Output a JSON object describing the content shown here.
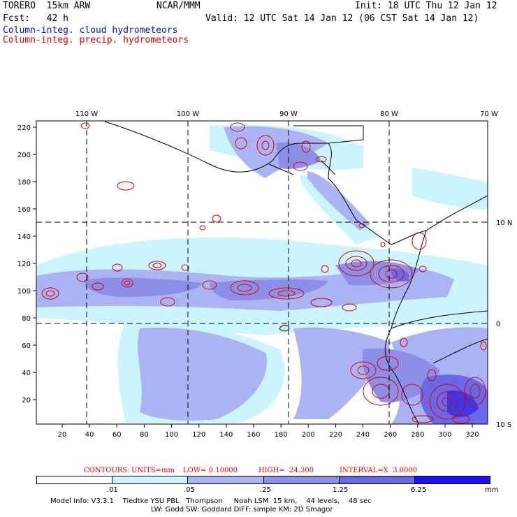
{
  "header": {
    "model_line": "TORERO  15km ARW",
    "center": "NCAR/MMM",
    "init": "Init: 18 UTC Thu 12 Jan 12",
    "fcst": "Fcst:   42 h",
    "valid": "Valid: 12 UTC Sat 14 Jan 12 (06 CST Sat 14 Jan 12)",
    "field1": "Column-integ. cloud hydrometeors",
    "field2": "Column-integ. precip. hydrometeors"
  },
  "colors": {
    "field1": "#1010c8",
    "field2": "#e00000",
    "contour": "#e00000",
    "shade": [
      "#ffffff",
      "#ccf4ff",
      "#aab4f4",
      "#8c8ee8",
      "#6a68e6",
      "#3c38e8",
      "#1c10f0"
    ]
  },
  "axes": {
    "left_ticks": [
      "220",
      "200",
      "180",
      "160",
      "140",
      "120",
      "100",
      "80",
      "60",
      "40",
      "20"
    ],
    "bottom_ticks": [
      "20",
      "40",
      "60",
      "80",
      "100",
      "120",
      "140",
      "160",
      "180",
      "200",
      "220",
      "240",
      "260",
      "280",
      "300",
      "320"
    ],
    "top_lons": [
      "110 W",
      "100 W",
      "90 W",
      "80 W",
      "70 W"
    ],
    "right_lats": [
      "10 N",
      "0",
      "10 S"
    ]
  },
  "contour_info": {
    "label": "CONTOURS:",
    "units": "UNITS=mm",
    "low": "LOW= 0.10000",
    "high": "HIGH=  24.300",
    "interval": "INTERVAL=X  3.0000"
  },
  "colorbar": {
    "levels": [
      ".01",
      ".05",
      ".25",
      "1.25",
      "6.25"
    ],
    "unit": "mm"
  },
  "footer": {
    "line1": "Model Info: V3.3.1    Tiedtke YSU PBL   Thompson     Noah LSM  15 km,    44 levels,    48 sec",
    "line2": "LW: Godd SW: Goddard DIFF: simple KM: 2D Smagor"
  }
}
